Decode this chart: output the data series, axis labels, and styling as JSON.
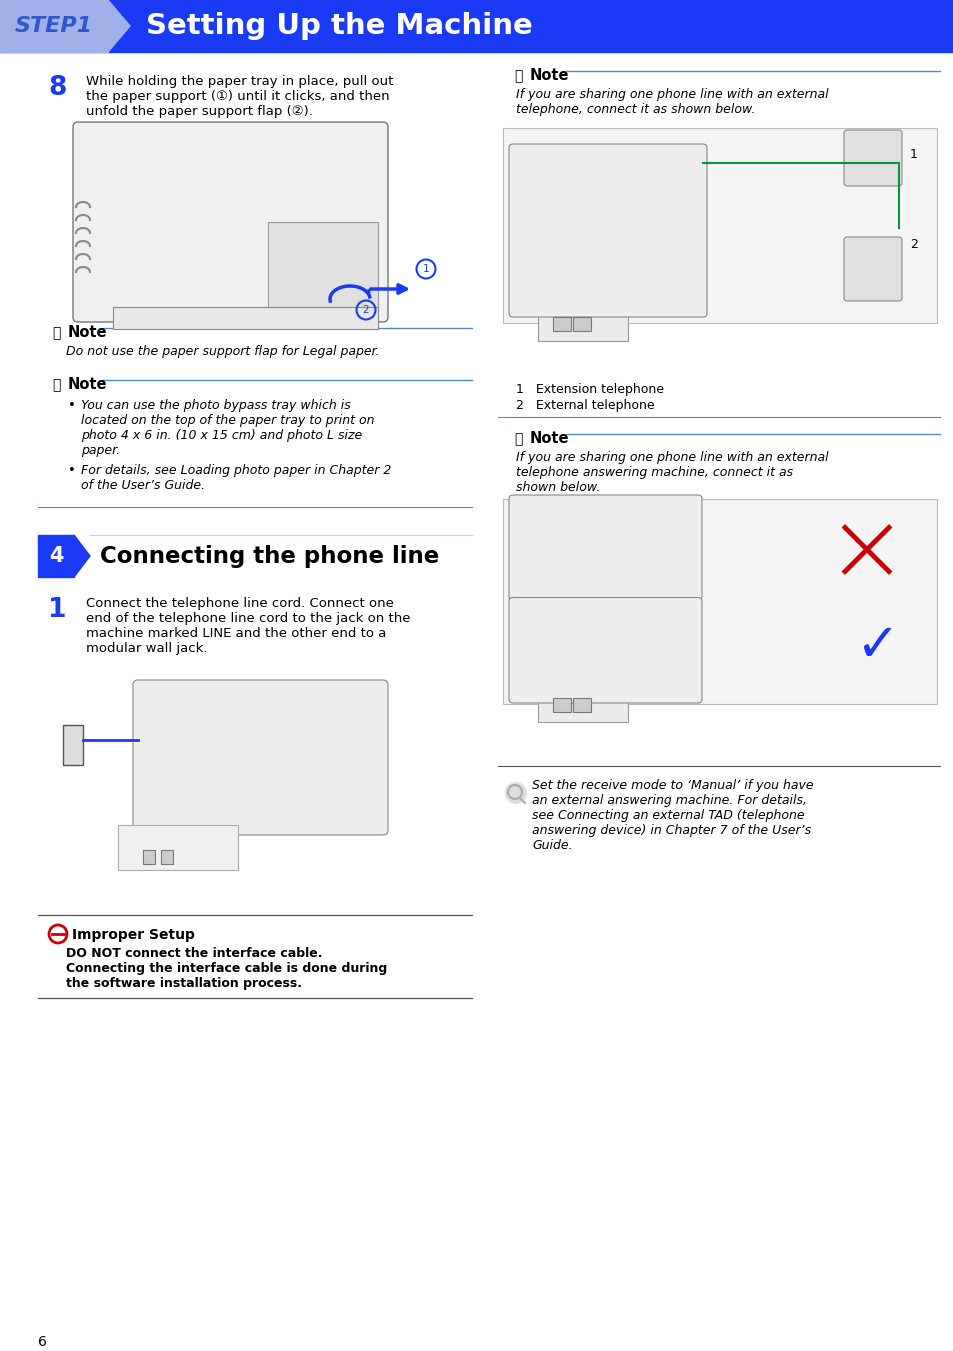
{
  "title_bg": "#1a3af5",
  "title_tab_bg": "#a0b0e8",
  "title_step": "STEP1",
  "title_main": "Setting Up the Machine",
  "page_bg": "#ffffff",
  "blue": "#1a3af5",
  "black": "#000000",
  "note_line": "#5588cc",
  "red": "#cc0000",
  "green": "#009933",
  "gray_dark": "#555555",
  "page_num": "6",
  "step8_num": "8",
  "step8_text": "While holding the paper tray in place, pull out\nthe paper support (①) until it clicks, and then\nunfold the paper support flap (②).",
  "note1_text": "Do not use the paper support flap for Legal paper.",
  "note2_b1": "You can use the photo bypass tray which is\nlocated on the top of the paper tray to print on\nphoto 4 x 6 in. (10 x 15 cm) and photo L size\npaper.",
  "note2_b2": "For details, see Loading photo paper in Chapter 2\nof the User’s Guide.",
  "sec4_num": "4",
  "sec4_title": "Connecting the phone line",
  "step1_num": "1",
  "step1_text": "Connect the telephone line cord. Connect one\nend of the telephone line cord to the jack on the\nmachine marked LINE and the other end to a\nmodular wall jack.",
  "imp_title": "Improper Setup",
  "imp_text": "DO NOT connect the interface cable.\nConnecting the interface cable is done during\nthe software installation process.",
  "nr1_text": "If you are sharing one phone line with an external\ntelephone, connect it as shown below.",
  "nr1_cap1": "1   Extension telephone",
  "nr1_cap2": "2   External telephone",
  "nr2_text": "If you are sharing one phone line with an external\ntelephone answering machine, connect it as\nshown below.",
  "nr3_text": "Set the receive mode to ‘Manual’ if you have\nan external answering machine. For details,\nsee Connecting an external TAD (telephone\nanswering device) in Chapter 7 of the User’s\nGuide."
}
